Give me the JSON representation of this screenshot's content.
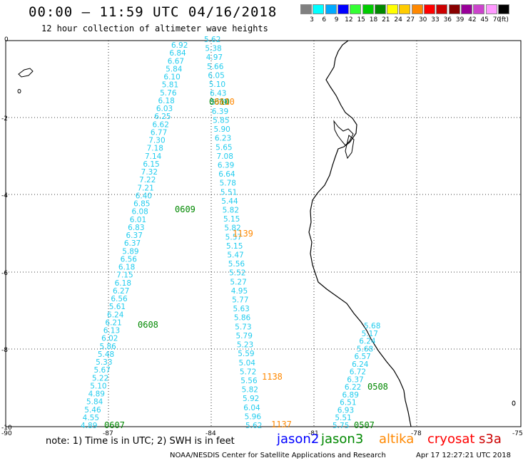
{
  "header": {
    "title": "00:00 – 11:59 UTC 04/16/2018",
    "subtitle": "12 hour collection of altimeter wave heights"
  },
  "legend": {
    "unit": "(ft)",
    "items": [
      {
        "label": "3",
        "color": "#808080"
      },
      {
        "label": "6",
        "color": "#00ffff"
      },
      {
        "label": "9",
        "color": "#00aaff"
      },
      {
        "label": "12",
        "color": "#0000ff"
      },
      {
        "label": "15",
        "color": "#33ff33"
      },
      {
        "label": "18",
        "color": "#00cc00"
      },
      {
        "label": "21",
        "color": "#008800"
      },
      {
        "label": "24",
        "color": "#ffff00"
      },
      {
        "label": "27",
        "color": "#ffcc00"
      },
      {
        "label": "30",
        "color": "#ff8800"
      },
      {
        "label": "33",
        "color": "#ff0000"
      },
      {
        "label": "36",
        "color": "#cc0000"
      },
      {
        "label": "39",
        "color": "#880000"
      },
      {
        "label": "42",
        "color": "#990099"
      },
      {
        "label": "45",
        "color": "#cc44cc"
      },
      {
        "label": "70",
        "color": "#ff99ff"
      },
      {
        "label": "",
        "color": "#000000"
      }
    ]
  },
  "axes": {
    "lat_labels": [
      "0",
      "-2",
      "-4",
      "-6",
      "-8",
      "-10"
    ],
    "lon_labels": [
      "-90",
      "-87",
      "-84",
      "-81",
      "-78",
      "-75"
    ]
  },
  "colors": {
    "swh": "#22ccee",
    "jason3": "#008800",
    "altika": "#ff8800",
    "jason2": "#0000ff",
    "cryosat": "#ff0000",
    "s3a": "#cc0000"
  },
  "tracks": [
    {
      "id": "A",
      "values": [
        "6.92",
        "6.84",
        "6.67",
        "5.84",
        "6.10",
        "5.81",
        "5.76",
        "6.18",
        "6.03",
        "6.25",
        "6.62",
        "6.77",
        "7.30",
        "7.18",
        "7.14",
        "6.15",
        "7.32",
        "7.22",
        "7.21",
        "6.40",
        "6.85",
        "6.08",
        "6.01",
        "6.83",
        "6.37",
        "6.37",
        "5.89",
        "6.56",
        "6.18",
        "7.15",
        "6.18",
        "6.27",
        "6.56",
        "5.61",
        "6.24",
        "6.21",
        "6.13",
        "6.02",
        "5.86",
        "5.48",
        "5.33",
        "5.67",
        "5.22",
        "5.10",
        "4.89",
        "5.84",
        "5.46",
        "4.55",
        "4.89"
      ]
    },
    {
      "id": "B",
      "values": [
        "5.62",
        "5.38",
        "4.97",
        "5.66",
        "6.05",
        "5.10",
        "6.43",
        "5.79",
        "6.39",
        "5.85",
        "5.90",
        "6.23",
        "5.65",
        "7.08",
        "6.39",
        "6.64",
        "5.78",
        "5.51",
        "5.44",
        "5.82",
        "5.15",
        "5.82",
        "5.57",
        "5.15",
        "5.47",
        "5.56",
        "5.52",
        "5.27",
        "4.95",
        "5.77",
        "5.63",
        "5.86",
        "5.73",
        "5.79",
        "5.23",
        "5.59",
        "5.04",
        "5.72",
        "5.56",
        "5.82",
        "5.92",
        "6.04",
        "5.96",
        "5.62"
      ]
    },
    {
      "id": "C",
      "values": [
        "5.68",
        "5.17",
        "6.24",
        "5.68",
        "6.57",
        "6.24",
        "6.72",
        "6.37",
        "6.22",
        "6.89",
        "6.51",
        "6.93",
        "5.51",
        "5.75"
      ]
    }
  ],
  "time_labels": [
    {
      "text": "0610",
      "sat": "jason3"
    },
    {
      "text": "0610",
      "sat": "altika"
    },
    {
      "text": "0609",
      "sat": "jason3"
    },
    {
      "text": "1139",
      "sat": "altika"
    },
    {
      "text": "0608",
      "sat": "jason3"
    },
    {
      "text": "1138",
      "sat": "altika"
    },
    {
      "text": "0508",
      "sat": "jason3"
    },
    {
      "text": "0607",
      "sat": "jason3"
    },
    {
      "text": "1137",
      "sat": "altika"
    },
    {
      "text": "0507",
      "sat": "jason3"
    }
  ],
  "footer": {
    "note": "note: 1) Time is in UTC; 2) SWH is in feet",
    "satellites": [
      {
        "name": "jason2",
        "key": "jason2"
      },
      {
        "name": "jason3",
        "key": "jason3"
      },
      {
        "name": "altika",
        "key": "altika"
      },
      {
        "name": "cryosat",
        "key": "cryosat"
      },
      {
        "name": "s3a",
        "key": "s3a"
      }
    ],
    "credit": "NOAA/NESDIS Center for Satellite Applications and Research",
    "timestamp": "Apr 17 12:27:21 UTC 2018"
  }
}
